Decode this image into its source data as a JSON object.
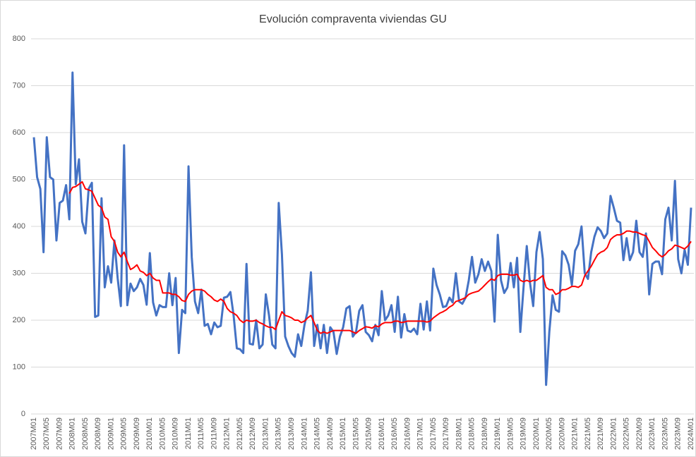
{
  "chart_data": {
    "type": "line",
    "title": "Evolución compraventa viviendas GU",
    "categories": [
      "2007M01",
      null,
      null,
      null,
      "2007M05",
      null,
      null,
      null,
      "2007M09",
      null,
      null,
      null,
      "2008M01",
      null,
      null,
      null,
      "2008M05",
      null,
      null,
      null,
      "2008M09",
      null,
      null,
      null,
      "2009M01",
      null,
      null,
      null,
      "2009M05",
      null,
      null,
      null,
      "2009M09",
      null,
      null,
      null,
      "2010M01",
      null,
      null,
      null,
      "2010M05",
      null,
      null,
      null,
      "2010M09",
      null,
      null,
      null,
      "2011M01",
      null,
      null,
      null,
      "2011M05",
      null,
      null,
      null,
      "2011M09",
      null,
      null,
      null,
      "2012M01",
      null,
      null,
      null,
      "2012M05",
      null,
      null,
      null,
      "2012M09",
      null,
      null,
      null,
      "2013M01",
      null,
      null,
      null,
      "2013M05",
      null,
      null,
      null,
      "2013M09",
      null,
      null,
      null,
      "2014M01",
      null,
      null,
      null,
      "2014M05",
      null,
      null,
      null,
      "2014M09",
      null,
      null,
      null,
      "2015M01",
      null,
      null,
      null,
      "2015M05",
      null,
      null,
      null,
      "2015M09",
      null,
      null,
      null,
      "2016M01",
      null,
      null,
      null,
      "2016M05",
      null,
      null,
      null,
      "2016M09",
      null,
      null,
      null,
      "2017M01",
      null,
      null,
      null,
      "2017M05",
      null,
      null,
      null,
      "2017M09",
      null,
      null,
      null,
      "2018M01",
      null,
      null,
      null,
      "2018M05",
      null,
      null,
      null,
      "2018M09",
      null,
      null,
      null,
      "2019M01",
      null,
      null,
      null,
      "2019M05",
      null,
      null,
      null,
      "2019M09",
      null,
      null,
      null,
      "2020M01",
      null,
      null,
      null,
      "2020M05",
      null,
      null,
      null,
      "2020M09",
      null,
      null,
      null,
      "2021M01",
      null,
      null,
      null,
      "2021M05",
      null,
      null,
      null,
      "2021M09",
      null,
      null,
      null,
      "2022M01",
      null,
      null,
      null,
      "2022M05",
      null,
      null,
      null,
      "2022M09",
      null,
      null,
      null,
      "2023M01",
      null,
      null,
      null,
      "2023M05",
      null,
      null,
      null,
      "2023M09",
      null,
      null,
      null,
      "2024M01"
    ],
    "series": [
      {
        "color": "#4472c4",
        "width": 3,
        "values": [
          590,
          505,
          480,
          345,
          590,
          505,
          500,
          370,
          450,
          455,
          488,
          415,
          728,
          490,
          543,
          410,
          385,
          480,
          493,
          207,
          210,
          460,
          270,
          315,
          280,
          370,
          290,
          230,
          573,
          232,
          278,
          262,
          270,
          288,
          275,
          233,
          343,
          238,
          210,
          232,
          228,
          228,
          300,
          232,
          290,
          130,
          222,
          215,
          528,
          335,
          240,
          215,
          265,
          188,
          192,
          170,
          195,
          185,
          188,
          248,
          250,
          260,
          210,
          140,
          138,
          130,
          320,
          150,
          148,
          200,
          140,
          148,
          255,
          210,
          148,
          140,
          450,
          340,
          165,
          145,
          130,
          122,
          170,
          145,
          190,
          220,
          302,
          145,
          190,
          140,
          190,
          130,
          185,
          175,
          128,
          165,
          185,
          225,
          230,
          165,
          175,
          220,
          232,
          175,
          168,
          155,
          190,
          168,
          262,
          200,
          210,
          232,
          175,
          250,
          163,
          213,
          178,
          175,
          182,
          170,
          235,
          180,
          240,
          178,
          310,
          275,
          255,
          228,
          230,
          248,
          238,
          300,
          240,
          235,
          248,
          285,
          335,
          280,
          298,
          330,
          305,
          325,
          305,
          197,
          382,
          285,
          258,
          270,
          322,
          270,
          333,
          175,
          270,
          358,
          280,
          230,
          345,
          388,
          330,
          62,
          175,
          253,
          222,
          218,
          347,
          338,
          318,
          275,
          348,
          362,
          400,
          300,
          288,
          345,
          378,
          398,
          390,
          375,
          385,
          465,
          440,
          412,
          408,
          328,
          375,
          328,
          345,
          412,
          345,
          335,
          385,
          255,
          320,
          325,
          325,
          298,
          415,
          440,
          370,
          497,
          330,
          300,
          350,
          318,
          440
        ]
      },
      {
        "color": "#ff0000",
        "width": 2,
        "values": [
          null,
          null,
          null,
          null,
          null,
          null,
          null,
          null,
          null,
          null,
          null,
          470,
          483,
          485,
          490,
          495,
          480,
          478,
          475,
          460,
          445,
          440,
          420,
          415,
          378,
          368,
          345,
          335,
          345,
          325,
          308,
          312,
          318,
          305,
          302,
          295,
          300,
          290,
          285,
          285,
          258,
          258,
          258,
          255,
          255,
          250,
          242,
          240,
          255,
          262,
          265,
          265,
          265,
          262,
          255,
          250,
          243,
          240,
          245,
          240,
          225,
          218,
          215,
          210,
          200,
          195,
          200,
          198,
          198,
          200,
          195,
          192,
          188,
          185,
          185,
          180,
          200,
          218,
          210,
          208,
          205,
          200,
          200,
          195,
          198,
          205,
          210,
          195,
          178,
          172,
          175,
          172,
          175,
          178,
          178,
          178,
          178,
          178,
          178,
          175,
          172,
          178,
          182,
          186,
          185,
          183,
          188,
          186,
          192,
          195,
          195,
          195,
          198,
          198,
          195,
          196,
          198,
          198,
          198,
          198,
          198,
          198,
          196,
          198,
          205,
          210,
          215,
          218,
          222,
          228,
          232,
          240,
          242,
          245,
          248,
          255,
          258,
          260,
          262,
          268,
          275,
          282,
          288,
          285,
          295,
          298,
          298,
          298,
          296,
          296,
          298,
          285,
          282,
          285,
          282,
          285,
          285,
          290,
          295,
          270,
          265,
          265,
          255,
          258,
          265,
          265,
          268,
          272,
          272,
          270,
          275,
          295,
          305,
          315,
          328,
          340,
          345,
          348,
          355,
          372,
          378,
          382,
          382,
          385,
          390,
          390,
          388,
          388,
          385,
          382,
          380,
          368,
          355,
          348,
          340,
          335,
          340,
          348,
          352,
          360,
          358,
          355,
          352,
          358,
          368
        ]
      }
    ],
    "ylim": [
      0,
      800
    ],
    "yticks": [
      0,
      100,
      200,
      300,
      400,
      500,
      600,
      700,
      800
    ],
    "grid": true
  }
}
